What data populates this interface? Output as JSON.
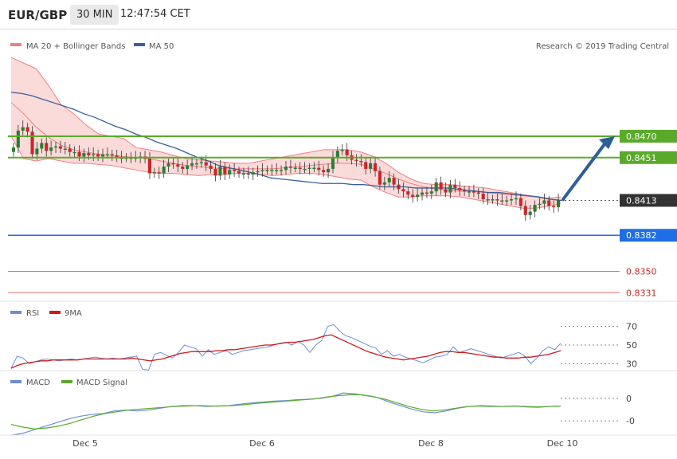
{
  "header": {
    "symbol": "EUR/GBP",
    "interval": "30 MIN",
    "time": "12:47:54 CET"
  },
  "legend": {
    "bollinger": "MA 20 + Bollinger Bands",
    "ma50": "MA 50",
    "rsi": "RSI",
    "rsi_ma": "9MA",
    "macd": "MACD",
    "macd_signal": "MACD Signal"
  },
  "copyright": "Research © 2019 Trading Central",
  "colors": {
    "up": "#2e7d32",
    "down": "#c62828",
    "ma50": "#3a5f9a",
    "bollinger": "#f08080",
    "band_fill": "#fbdada",
    "resistance": "#5aaa2a",
    "support": "#1e6fe6",
    "support_red": "#e07070",
    "current": "#333333",
    "arrow": "#2e5e99",
    "rsi": "#6b8fd6",
    "rsi_ma": "#d01818",
    "macd": "#6b8fd6",
    "macd_signal": "#5aaa2a"
  },
  "levels": [
    {
      "value": 0.847,
      "label": "0.8470",
      "kind": "resistance"
    },
    {
      "value": 0.8451,
      "label": "0.8451",
      "kind": "resistance"
    },
    {
      "value": 0.8413,
      "label": "0.8413",
      "kind": "current"
    },
    {
      "value": 0.8382,
      "label": "0.8382",
      "kind": "support"
    },
    {
      "value": 0.835,
      "label": "0.8350",
      "kind": "support_minor"
    },
    {
      "value": 0.8331,
      "label": "0.8331",
      "kind": "support_minor"
    }
  ],
  "chart_data": [
    {
      "type": "candlestick",
      "title": "EUR/GBP 30 MIN",
      "x_ticks": [
        "Dec 5",
        "Dec 6",
        "Dec 8",
        "Dec 10"
      ],
      "ylim": [
        0.8322,
        0.8545
      ],
      "close": [
        0.846,
        0.8475,
        0.8478,
        0.8474,
        0.8454,
        0.8459,
        0.8464,
        0.8457,
        0.846,
        0.8461,
        0.8459,
        0.8459,
        0.8456,
        0.8456,
        0.8452,
        0.8455,
        0.8453,
        0.8454,
        0.8452,
        0.8454,
        0.8454,
        0.8453,
        0.8451,
        0.8451,
        0.8451,
        0.8451,
        0.8451,
        0.8452,
        0.845,
        0.8437,
        0.8438,
        0.8437,
        0.8443,
        0.8446,
        0.8445,
        0.8443,
        0.8441,
        0.8444,
        0.8446,
        0.8446,
        0.8447,
        0.8444,
        0.8441,
        0.8435,
        0.8443,
        0.8436,
        0.844,
        0.8439,
        0.8437,
        0.8437,
        0.8436,
        0.8438,
        0.8439,
        0.844,
        0.844,
        0.844,
        0.844,
        0.844,
        0.8443,
        0.8442,
        0.8442,
        0.8441,
        0.8441,
        0.8442,
        0.8442,
        0.844,
        0.8438,
        0.8441,
        0.8451,
        0.8457,
        0.8458,
        0.8453,
        0.8449,
        0.8448,
        0.8447,
        0.8441,
        0.8446,
        0.8439,
        0.8427,
        0.8429,
        0.8433,
        0.8427,
        0.8423,
        0.8421,
        0.8418,
        0.8416,
        0.8418,
        0.842,
        0.8419,
        0.8421,
        0.8429,
        0.8423,
        0.842,
        0.8427,
        0.8424,
        0.8422,
        0.8421,
        0.8421,
        0.842,
        0.8419,
        0.8414,
        0.8414,
        0.8414,
        0.8413,
        0.8413,
        0.8413,
        0.8414,
        0.8415,
        0.8408,
        0.84,
        0.8403,
        0.8409,
        0.841,
        0.8413,
        0.8408,
        0.8407,
        0.8413
      ],
      "ma50": [
        0.8509,
        0.8508,
        0.8506,
        0.8503,
        0.85,
        0.8497,
        0.8494,
        0.849,
        0.8487,
        0.8483,
        0.8479,
        0.8476,
        0.8472,
        0.8469,
        0.8465,
        0.8462,
        0.8459,
        0.8455,
        0.8451,
        0.8448,
        0.8444,
        0.8442,
        0.844,
        0.8438,
        0.8436,
        0.8433,
        0.8432,
        0.8431,
        0.843,
        0.8429,
        0.8428,
        0.8428,
        0.8428,
        0.8427,
        0.8427,
        0.8426,
        0.8425,
        0.8425,
        0.8425,
        0.8424,
        0.8424,
        0.8424,
        0.8424,
        0.8423,
        0.8422,
        0.8421,
        0.842,
        0.842,
        0.8419,
        0.8418,
        0.8417,
        0.8416,
        0.8414,
        0.8413
      ],
      "bb_mid": [
        0.85,
        0.849,
        0.8478,
        0.8469,
        0.8462,
        0.8458,
        0.8456,
        0.8454,
        0.8453,
        0.8452,
        0.8451,
        0.845,
        0.8448,
        0.8446,
        0.8444,
        0.8443,
        0.8442,
        0.8441,
        0.8441,
        0.8441,
        0.8441,
        0.8441,
        0.8442,
        0.8443,
        0.8444,
        0.8445,
        0.8446,
        0.8446,
        0.8445,
        0.8441,
        0.8437,
        0.8432,
        0.8428,
        0.8425,
        0.8423,
        0.8422,
        0.8421,
        0.8421,
        0.842,
        0.8419,
        0.8418,
        0.8417,
        0.8416,
        0.8414,
        0.8413
      ],
      "bb_upper": [
        0.854,
        0.8535,
        0.853,
        0.8515,
        0.8498,
        0.849,
        0.848,
        0.8472,
        0.847,
        0.8468,
        0.846,
        0.8458,
        0.8456,
        0.8453,
        0.845,
        0.8449,
        0.8448,
        0.8447,
        0.8446,
        0.8446,
        0.8448,
        0.845,
        0.8452,
        0.8454,
        0.8456,
        0.8458,
        0.8458,
        0.8458,
        0.8456,
        0.8452,
        0.8446,
        0.8438,
        0.8432,
        0.8428,
        0.8427,
        0.8427,
        0.8426,
        0.8425,
        0.8424,
        0.8422,
        0.842,
        0.8418,
        0.8416,
        0.8415,
        0.8416
      ],
      "bb_lower": [
        0.847,
        0.845,
        0.8448,
        0.845,
        0.8448,
        0.8446,
        0.8446,
        0.8445,
        0.8444,
        0.8442,
        0.844,
        0.8438,
        0.8437,
        0.8437,
        0.8436,
        0.8435,
        0.8436,
        0.8436,
        0.8437,
        0.8437,
        0.8436,
        0.8435,
        0.8436,
        0.8437,
        0.8437,
        0.8436,
        0.8434,
        0.8432,
        0.8431,
        0.8425,
        0.842,
        0.8416,
        0.8416,
        0.8417,
        0.8417,
        0.8417,
        0.8416,
        0.8414,
        0.8412,
        0.841,
        0.8408,
        0.8406,
        0.8406,
        0.8408,
        0.841
      ]
    },
    {
      "type": "line",
      "title": "RSI",
      "yticks": [
        30,
        50,
        70
      ],
      "ylim": [
        20,
        80
      ],
      "series": [
        {
          "name": "RSI",
          "values": [
            25,
            38,
            36,
            30,
            32,
            34,
            35,
            34,
            33,
            34,
            35,
            34,
            35,
            36,
            37,
            36,
            35,
            36,
            35,
            36,
            37,
            38,
            24,
            23,
            40,
            42,
            39,
            36,
            42,
            50,
            48,
            46,
            38,
            45,
            40,
            42,
            44,
            40,
            42,
            44,
            45,
            46,
            47,
            48,
            50,
            52,
            53,
            50,
            54,
            50,
            42,
            50,
            55,
            70,
            72,
            65,
            60,
            58,
            55,
            52,
            49,
            47,
            40,
            44,
            38,
            40,
            37,
            35,
            33,
            31,
            34,
            37,
            38,
            40,
            48,
            42,
            44,
            46,
            44,
            42,
            40,
            38,
            36,
            38,
            40,
            42,
            38,
            30,
            36,
            44,
            48,
            45,
            52
          ]
        },
        {
          "name": "9MA",
          "values": [
            25,
            28,
            30,
            31,
            32,
            33,
            33,
            34,
            34,
            34,
            34,
            34,
            35,
            35,
            35,
            35,
            35,
            35,
            35,
            35,
            36,
            35,
            34,
            33,
            34,
            35,
            37,
            39,
            41,
            42,
            43,
            43,
            43,
            43,
            44,
            44,
            45,
            45,
            46,
            47,
            48,
            49,
            50,
            50,
            51,
            52,
            53,
            53,
            54,
            55,
            56,
            58,
            60,
            61,
            58,
            55,
            52,
            49,
            46,
            43,
            41,
            39,
            37,
            36,
            35,
            34,
            35,
            36,
            37,
            38,
            40,
            42,
            43,
            43,
            42,
            42,
            41,
            40,
            39,
            38,
            37,
            37,
            36,
            36,
            36,
            37,
            37,
            38,
            39,
            40,
            42,
            44
          ]
        }
      ]
    },
    {
      "type": "line",
      "title": "MACD",
      "yticks": [
        0,
        -0.0005
      ],
      "ylim": [
        -0.0008,
        0.0003
      ],
      "series": [
        {
          "name": "MACD",
          "values": [
            -0.00082,
            -0.00078,
            -0.0007,
            -0.00062,
            -0.00054,
            -0.00046,
            -0.0004,
            -0.00036,
            -0.00034,
            -0.00028,
            -0.00026,
            -0.00028,
            -0.00026,
            -0.00022,
            -0.00018,
            -0.00016,
            -0.00016,
            -0.00018,
            -0.00017,
            -0.00016,
            -0.00013,
            -0.0001,
            -8e-05,
            -6e-05,
            -5e-05,
            -3e-05,
            -2e-05,
            0.0,
            4e-05,
            0.00012,
            0.0001,
            6e-05,
            2e-05,
            -8e-05,
            -0.00016,
            -0.00024,
            -0.0003,
            -0.00032,
            -0.00028,
            -0.00022,
            -0.00018,
            -0.00016,
            -0.00017,
            -0.00018,
            -0.00017,
            -0.00019,
            -0.0002,
            -0.00018,
            -0.00017
          ]
        },
        {
          "name": "MACD Signal",
          "values": [
            -0.00058,
            -0.00064,
            -0.00068,
            -0.00066,
            -0.00062,
            -0.00056,
            -0.00048,
            -0.0004,
            -0.00034,
            -0.0003,
            -0.00026,
            -0.00024,
            -0.00022,
            -0.0002,
            -0.00018,
            -0.00017,
            -0.00016,
            -0.00017,
            -0.00017,
            -0.00016,
            -0.00014,
            -0.00011,
            -9e-05,
            -7e-05,
            -5e-05,
            -3e-05,
            -1e-05,
            3e-05,
            6e-05,
            8e-05,
            8e-05,
            4e-05,
            -2e-05,
            -0.0001,
            -0.00018,
            -0.00024,
            -0.00028,
            -0.00026,
            -0.00022,
            -0.00018,
            -0.00017,
            -0.00018,
            -0.00018,
            -0.00017,
            -0.00018,
            -0.00019,
            -0.00018,
            -0.00017
          ]
        }
      ]
    }
  ]
}
